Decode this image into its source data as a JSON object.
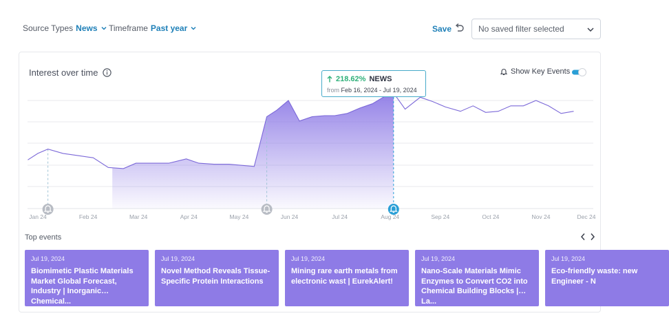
{
  "filters": {
    "source_types": {
      "label": "Source Types",
      "value": "News"
    },
    "timeframe": {
      "label": "Timeframe",
      "value": "Past year"
    }
  },
  "toolbar": {
    "save_label": "Save",
    "saved_filter_value": "No saved filter selected"
  },
  "card": {
    "title": "Interest over time",
    "show_key_events_label": "Show Key Events",
    "show_key_events_on": true
  },
  "tooltip": {
    "change": "218.62%",
    "direction": "up",
    "label": "NEWS",
    "from_label": "from",
    "range": "Feb 16, 2024 - Jul 19, 2024"
  },
  "chart_data": {
    "type": "area",
    "title": "Interest over time",
    "x_ticks": [
      "Jan 24",
      "Feb 24",
      "Mar 24",
      "Apr 24",
      "May 24",
      "Jun 24",
      "Jul 24",
      "Aug 24",
      "Sep 24",
      "Oct 24",
      "Nov 24",
      "Dec 24"
    ],
    "x_range": [
      0,
      11.3
    ],
    "ylim": [
      0,
      100
    ],
    "grid": true,
    "series": [
      {
        "color": "#7b68d8",
        "x": [
          -0.2,
          0.0,
          0.2,
          0.5,
          0.8,
          1.1,
          1.4,
          1.7,
          1.95,
          2.2,
          2.6,
          2.95,
          3.2,
          3.5,
          3.8,
          4.05,
          4.3,
          4.55,
          4.75,
          4.98,
          5.2,
          5.45,
          5.7,
          5.9,
          6.15,
          6.4,
          6.65,
          6.9,
          7.07,
          7.3,
          7.6,
          7.85,
          8.1,
          8.4,
          8.65,
          8.9,
          9.15,
          9.4,
          9.65,
          9.9,
          10.15,
          10.4,
          10.65
        ],
        "values": [
          45,
          51,
          55,
          51,
          49,
          47,
          38,
          37,
          42,
          42,
          42,
          46,
          42,
          41,
          41,
          40,
          39,
          85,
          91,
          100,
          81,
          85,
          86,
          86,
          88,
          93,
          97,
          104,
          107,
          92,
          103,
          99,
          94,
          90,
          95,
          89,
          90,
          95,
          95,
          100,
          95,
          88,
          90
        ]
      }
    ],
    "highlight_range": {
      "start": 1.48,
      "end": 7.07
    },
    "key_events": [
      0.2,
      4.55,
      7.07
    ],
    "selected_event": 7.07
  },
  "top_events": {
    "label": "Top events",
    "items": [
      {
        "date": "Jul 19, 2024",
        "title": "Biomimetic Plastic Materials Market Global Forecast, Industry | Inorganic Chemical..."
      },
      {
        "date": "Jul 19, 2024",
        "title": "Novel Method Reveals Tissue-Specific Protein Interactions"
      },
      {
        "date": "Jul 19, 2024",
        "title": "Mining rare earth metals from electronic wast | EurekAlert!"
      },
      {
        "date": "Jul 19, 2024",
        "title": "Nano-Scale Materials Mimic Enzymes to Convert CO2 into Chemical Building Blocks | La..."
      },
      {
        "date": "Jul 19, 2024",
        "title": "Eco-friendly waste: new Engineer - N"
      }
    ]
  },
  "colors": {
    "accent": "#1f80b8",
    "area_fill": "#8e7be6",
    "event_card": "#8e7be6",
    "marker_selected": "#2a9fd6",
    "marker_default": "#b8bcc4",
    "positive": "#2fb07a"
  }
}
